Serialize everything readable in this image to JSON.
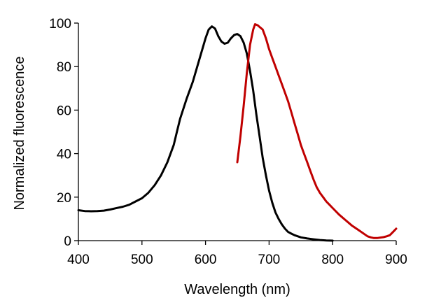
{
  "chart_data": {
    "type": "line",
    "title": "",
    "xlabel": "Wavelength (nm)",
    "ylabel": "Normalized fluorescence",
    "xlim": [
      400,
      900
    ],
    "ylim": [
      0,
      100
    ],
    "xticks": [
      400,
      500,
      600,
      700,
      800,
      900
    ],
    "yticks": [
      0,
      20,
      40,
      60,
      80,
      100
    ],
    "grid": false,
    "legend": "none",
    "series": [
      {
        "color": "#000000",
        "points": [
          [
            400,
            14
          ],
          [
            410,
            13.6
          ],
          [
            420,
            13.5
          ],
          [
            430,
            13.6
          ],
          [
            440,
            13.8
          ],
          [
            450,
            14.3
          ],
          [
            460,
            15
          ],
          [
            470,
            15.6
          ],
          [
            480,
            16.5
          ],
          [
            490,
            18
          ],
          [
            500,
            19.5
          ],
          [
            510,
            22
          ],
          [
            520,
            25.5
          ],
          [
            530,
            30
          ],
          [
            540,
            36
          ],
          [
            550,
            44
          ],
          [
            555,
            50
          ],
          [
            560,
            56
          ],
          [
            570,
            65
          ],
          [
            580,
            73
          ],
          [
            590,
            83
          ],
          [
            600,
            93
          ],
          [
            605,
            97
          ],
          [
            610,
            98.5
          ],
          [
            615,
            97.5
          ],
          [
            620,
            94
          ],
          [
            625,
            91.5
          ],
          [
            630,
            90.5
          ],
          [
            635,
            91
          ],
          [
            640,
            93
          ],
          [
            645,
            94.5
          ],
          [
            650,
            95
          ],
          [
            655,
            94
          ],
          [
            660,
            91
          ],
          [
            665,
            86
          ],
          [
            670,
            78
          ],
          [
            675,
            69
          ],
          [
            680,
            58
          ],
          [
            685,
            48
          ],
          [
            690,
            38
          ],
          [
            695,
            30
          ],
          [
            700,
            23
          ],
          [
            705,
            17.5
          ],
          [
            710,
            13
          ],
          [
            715,
            10
          ],
          [
            720,
            7.5
          ],
          [
            725,
            5.5
          ],
          [
            730,
            4
          ],
          [
            735,
            3.2
          ],
          [
            740,
            2.5
          ],
          [
            750,
            1.5
          ],
          [
            760,
            1
          ],
          [
            770,
            0.6
          ],
          [
            780,
            0.3
          ],
          [
            790,
            0.1
          ],
          [
            800,
            0
          ]
        ]
      },
      {
        "color": "#c00000",
        "points": [
          [
            650,
            36
          ],
          [
            655,
            48
          ],
          [
            660,
            62
          ],
          [
            665,
            77
          ],
          [
            670,
            90
          ],
          [
            675,
            97
          ],
          [
            678,
            99.5
          ],
          [
            682,
            99
          ],
          [
            686,
            98
          ],
          [
            690,
            97
          ],
          [
            695,
            93
          ],
          [
            700,
            88
          ],
          [
            705,
            84
          ],
          [
            710,
            80
          ],
          [
            715,
            76
          ],
          [
            720,
            72
          ],
          [
            725,
            68
          ],
          [
            730,
            64
          ],
          [
            735,
            59
          ],
          [
            740,
            54
          ],
          [
            745,
            49
          ],
          [
            750,
            44
          ],
          [
            755,
            40
          ],
          [
            760,
            36
          ],
          [
            765,
            32
          ],
          [
            770,
            28
          ],
          [
            775,
            24.5
          ],
          [
            780,
            22
          ],
          [
            785,
            20
          ],
          [
            790,
            18
          ],
          [
            795,
            16.5
          ],
          [
            800,
            15
          ],
          [
            810,
            12
          ],
          [
            820,
            9.5
          ],
          [
            830,
            7
          ],
          [
            840,
            5
          ],
          [
            850,
            3
          ],
          [
            855,
            2
          ],
          [
            860,
            1.5
          ],
          [
            865,
            1.2
          ],
          [
            870,
            1.2
          ],
          [
            875,
            1.4
          ],
          [
            880,
            1.6
          ],
          [
            885,
            2
          ],
          [
            890,
            2.5
          ],
          [
            895,
            4
          ],
          [
            900,
            5.5
          ]
        ]
      }
    ]
  }
}
